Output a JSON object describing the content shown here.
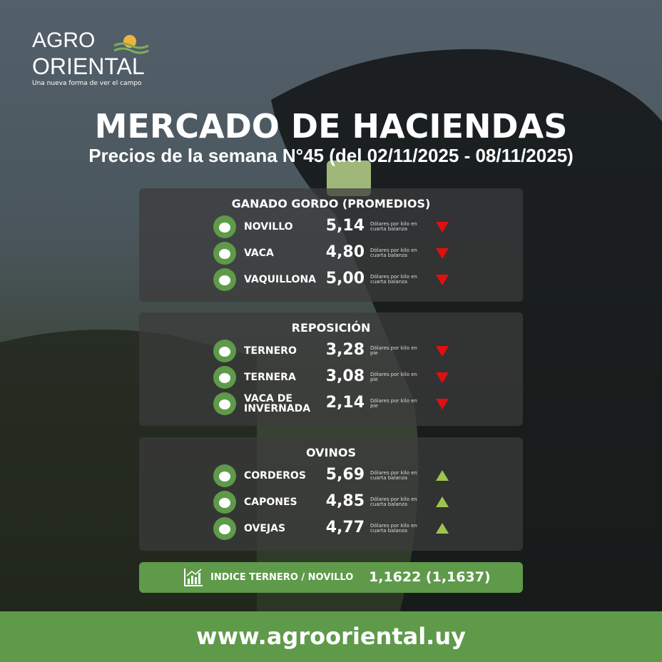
{
  "logo": {
    "line1": "AGRO",
    "line2": "ORIENTAL",
    "tagline": "Una nueva forma de ver el campo"
  },
  "header": {
    "title": "MERCADO DE HACIENDAS",
    "subtitle": "Precios de la semana N°45 (del 02/11/2025 - 08/11/2025)"
  },
  "sections": [
    {
      "title": "GANADO GORDO (PROMEDIOS)",
      "rows": [
        {
          "label": "NOVILLO",
          "price": "5,14",
          "unit": "Dólares por kilo en cuarta balanza",
          "trend": "down"
        },
        {
          "label": "VACA",
          "price": "4,80",
          "unit": "Dólares por kilo en cuarta balanza",
          "trend": "down"
        },
        {
          "label": "VAQUILLONA",
          "price": "5,00",
          "unit": "Dólares por kilo en cuarta balanza",
          "trend": "down"
        }
      ]
    },
    {
      "title": "REPOSICIÓN",
      "rows": [
        {
          "label": "TERNERO",
          "price": "3,28",
          "unit": "Dólares por kilo en pie",
          "trend": "down"
        },
        {
          "label": "TERNERA",
          "price": "3,08",
          "unit": "Dólares por kilo en pie",
          "trend": "down"
        },
        {
          "label": "VACA DE INVERNADA",
          "price": "2,14",
          "unit": "Dólares por kilo en pie",
          "trend": "down"
        }
      ]
    },
    {
      "title": "OVINOS",
      "rows": [
        {
          "label": "CORDEROS",
          "price": "5,69",
          "unit": "Dólares por kilo en cuarta balanza",
          "trend": "up"
        },
        {
          "label": "CAPONES",
          "price": "4,85",
          "unit": "Dólares por kilo en cuarta balanza",
          "trend": "up"
        },
        {
          "label": "OVEJAS",
          "price": "4,77",
          "unit": "Dólares por kilo en cuarta balanza",
          "trend": "up"
        }
      ]
    }
  ],
  "index": {
    "label": "INDICE TERNERO / NOVILLO",
    "value": "1,1622 (1,1637)"
  },
  "footer": {
    "url": "www.agrooriental.uy"
  }
}
